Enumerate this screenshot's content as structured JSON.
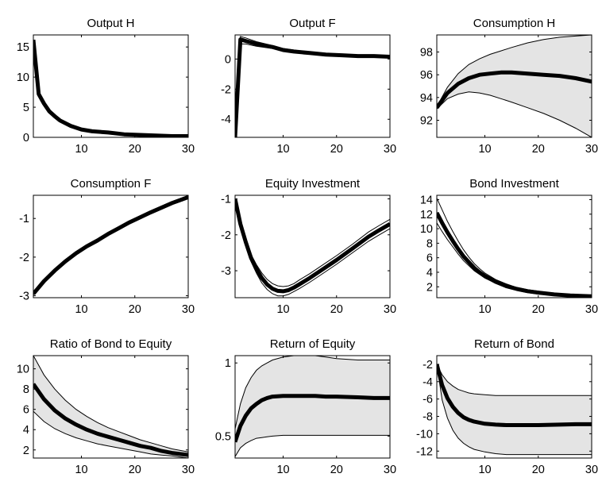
{
  "chart_data": [
    {
      "type": "line",
      "title": "Output H",
      "xlim": [
        1,
        30
      ],
      "ylim": [
        0,
        17
      ],
      "xticks": [
        10,
        20,
        30
      ],
      "yticks": [
        0,
        5,
        10,
        15
      ],
      "x": [
        1,
        2,
        3,
        4,
        5,
        6,
        8,
        10,
        12,
        15,
        18,
        21,
        24,
        27,
        30
      ],
      "mean": [
        16.2,
        7.2,
        5.6,
        4.3,
        3.5,
        2.8,
        1.9,
        1.3,
        1.0,
        0.8,
        0.5,
        0.4,
        0.3,
        0.2,
        0.2
      ],
      "lower": null,
      "upper": null,
      "band": false
    },
    {
      "type": "line",
      "title": "Output F",
      "xlim": [
        1,
        30
      ],
      "ylim": [
        -5.2,
        1.6
      ],
      "xticks": [
        10,
        20,
        30
      ],
      "yticks": [
        -4,
        -2,
        0
      ],
      "x": [
        1,
        2,
        3,
        5,
        8,
        10,
        12,
        15,
        18,
        21,
        24,
        27,
        30
      ],
      "mean": [
        -5.2,
        1.3,
        1.2,
        1.0,
        0.8,
        0.6,
        0.5,
        0.4,
        0.3,
        0.25,
        0.2,
        0.2,
        0.15
      ],
      "lower": [
        -5.2,
        1.0,
        1.0,
        0.85,
        0.7,
        0.55,
        0.45,
        0.35,
        0.25,
        0.2,
        0.15,
        0.15,
        0.1
      ],
      "upper": [
        -5.2,
        1.5,
        1.4,
        1.15,
        0.9,
        0.7,
        0.6,
        0.45,
        0.35,
        0.3,
        0.25,
        0.25,
        0.2
      ],
      "band": false
    },
    {
      "type": "line",
      "title": "Consumption H",
      "xlim": [
        1,
        30
      ],
      "ylim": [
        90.5,
        99.5
      ],
      "xticks": [
        10,
        20,
        30
      ],
      "yticks": [
        92,
        94,
        96,
        98
      ],
      "x": [
        1,
        3,
        5,
        7,
        9,
        11,
        13,
        15,
        18,
        21,
        24,
        27,
        30
      ],
      "mean": [
        93.1,
        94.4,
        95.2,
        95.7,
        96.0,
        96.1,
        96.2,
        96.2,
        96.1,
        96.0,
        95.9,
        95.7,
        95.4
      ],
      "lower": [
        93.0,
        93.9,
        94.3,
        94.5,
        94.4,
        94.2,
        93.9,
        93.6,
        93.1,
        92.6,
        92.0,
        91.3,
        90.5
      ],
      "upper": [
        93.2,
        94.9,
        96.1,
        96.9,
        97.4,
        97.8,
        98.1,
        98.4,
        98.8,
        99.1,
        99.3,
        99.4,
        99.5
      ],
      "band": true
    },
    {
      "type": "line",
      "title": "Consumption F",
      "xlim": [
        1,
        30
      ],
      "ylim": [
        -3.05,
        -0.4
      ],
      "xticks": [
        10,
        20,
        30
      ],
      "yticks": [
        -3,
        -2,
        -1
      ],
      "x": [
        1,
        3,
        5,
        7,
        9,
        11,
        13,
        15,
        17,
        19,
        21,
        23,
        25,
        27,
        30
      ],
      "mean": [
        -2.95,
        -2.62,
        -2.35,
        -2.11,
        -1.9,
        -1.72,
        -1.57,
        -1.4,
        -1.25,
        -1.1,
        -0.97,
        -0.84,
        -0.72,
        -0.6,
        -0.45
      ],
      "lower": [
        -2.98,
        -2.66,
        -2.39,
        -2.15,
        -1.94,
        -1.76,
        -1.61,
        -1.44,
        -1.29,
        -1.14,
        -1.01,
        -0.88,
        -0.76,
        -0.64,
        -0.49
      ],
      "upper": [
        -2.92,
        -2.58,
        -2.31,
        -2.07,
        -1.86,
        -1.68,
        -1.53,
        -1.36,
        -1.21,
        -1.06,
        -0.93,
        -0.8,
        -0.68,
        -0.56,
        -0.41
      ],
      "band": false
    },
    {
      "type": "line",
      "title": "Equity Investment",
      "xlim": [
        1,
        30
      ],
      "ylim": [
        -3.75,
        -0.9
      ],
      "xticks": [
        10,
        20,
        30
      ],
      "yticks": [
        -3,
        -2,
        -1
      ],
      "x": [
        1,
        2,
        3,
        4,
        5,
        6,
        7,
        8,
        9,
        10,
        11,
        12,
        13,
        15,
        17,
        20,
        23,
        26,
        28,
        30
      ],
      "mean": [
        -1.0,
        -1.7,
        -2.2,
        -2.65,
        -2.95,
        -3.2,
        -3.38,
        -3.5,
        -3.56,
        -3.57,
        -3.54,
        -3.47,
        -3.38,
        -3.2,
        -3.0,
        -2.7,
        -2.38,
        -2.05,
        -1.87,
        -1.7
      ],
      "lower": [
        -1.0,
        -1.75,
        -2.28,
        -2.75,
        -3.07,
        -3.34,
        -3.52,
        -3.64,
        -3.7,
        -3.7,
        -3.66,
        -3.58,
        -3.5,
        -3.32,
        -3.12,
        -2.82,
        -2.5,
        -2.18,
        -2.0,
        -1.83
      ],
      "upper": [
        -1.0,
        -1.65,
        -2.12,
        -2.55,
        -2.83,
        -3.06,
        -3.24,
        -3.36,
        -3.42,
        -3.44,
        -3.42,
        -3.36,
        -3.26,
        -3.08,
        -2.88,
        -2.58,
        -2.26,
        -1.92,
        -1.74,
        -1.57
      ],
      "band": false
    },
    {
      "type": "line",
      "title": "Bond Investment",
      "xlim": [
        1,
        30
      ],
      "ylim": [
        0.5,
        14.6
      ],
      "xticks": [
        10,
        20,
        30
      ],
      "yticks": [
        2,
        4,
        6,
        8,
        10,
        12,
        14
      ],
      "x": [
        1,
        2,
        3,
        4,
        5,
        6,
        7,
        8,
        9,
        10,
        12,
        14,
        16,
        18,
        20,
        23,
        26,
        30
      ],
      "mean": [
        12.2,
        10.8,
        9.5,
        8.3,
        7.2,
        6.2,
        5.4,
        4.6,
        4.0,
        3.5,
        2.7,
        2.1,
        1.7,
        1.4,
        1.2,
        0.95,
        0.8,
        0.7
      ],
      "lower": [
        10.8,
        9.6,
        8.5,
        7.5,
        6.5,
        5.6,
        4.9,
        4.2,
        3.7,
        3.2,
        2.5,
        1.9,
        1.5,
        1.2,
        1.0,
        0.8,
        0.65,
        0.5
      ],
      "upper": [
        14.2,
        12.6,
        11.0,
        9.6,
        8.3,
        7.1,
        6.1,
        5.2,
        4.5,
        3.9,
        3.0,
        2.4,
        1.9,
        1.6,
        1.4,
        1.1,
        0.95,
        0.85
      ],
      "band": false
    },
    {
      "type": "line",
      "title": "Ratio of Bond to Equity",
      "xlim": [
        1,
        30
      ],
      "ylim": [
        1.2,
        11.3
      ],
      "xticks": [
        10,
        20,
        30
      ],
      "yticks": [
        2,
        4,
        6,
        8,
        10
      ],
      "x": [
        1,
        3,
        5,
        7,
        9,
        11,
        13,
        15,
        17,
        19,
        21,
        23,
        25,
        27,
        30
      ],
      "mean": [
        8.5,
        7.0,
        5.9,
        5.1,
        4.5,
        4.0,
        3.6,
        3.3,
        3.0,
        2.7,
        2.4,
        2.2,
        1.9,
        1.7,
        1.5
      ],
      "lower": [
        5.8,
        4.8,
        4.1,
        3.6,
        3.2,
        2.9,
        2.6,
        2.4,
        2.2,
        2.0,
        1.8,
        1.6,
        1.5,
        1.4,
        1.2
      ],
      "upper": [
        11.3,
        9.4,
        8.0,
        6.9,
        6.0,
        5.3,
        4.7,
        4.2,
        3.8,
        3.4,
        3.0,
        2.7,
        2.4,
        2.1,
        1.8
      ],
      "band": true
    },
    {
      "type": "line",
      "title": "Return of Equity",
      "xlim": [
        1,
        30
      ],
      "ylim": [
        0.35,
        1.05
      ],
      "xticks": [
        10,
        20,
        30
      ],
      "yticks": [
        0.5,
        1
      ],
      "x": [
        1,
        2,
        3,
        4,
        5,
        6,
        7,
        8,
        10,
        12,
        14,
        16,
        18,
        20,
        24,
        27,
        30
      ],
      "mean": [
        0.46,
        0.57,
        0.64,
        0.69,
        0.72,
        0.745,
        0.76,
        0.77,
        0.775,
        0.775,
        0.775,
        0.775,
        0.77,
        0.77,
        0.765,
        0.76,
        0.76
      ],
      "lower": [
        0.36,
        0.42,
        0.45,
        0.47,
        0.485,
        0.49,
        0.495,
        0.5,
        0.505,
        0.505,
        0.505,
        0.505,
        0.505,
        0.505,
        0.505,
        0.505,
        0.505
      ],
      "upper": [
        0.55,
        0.72,
        0.83,
        0.9,
        0.95,
        0.98,
        1.0,
        1.02,
        1.04,
        1.05,
        1.05,
        1.05,
        1.04,
        1.03,
        1.02,
        1.02,
        1.02
      ],
      "band": true
    },
    {
      "type": "line",
      "title": "Return of Bond",
      "xlim": [
        1,
        30
      ],
      "ylim": [
        -12.8,
        -1.0
      ],
      "xticks": [
        10,
        20,
        30
      ],
      "yticks": [
        -12,
        -10,
        -8,
        -6,
        -4,
        -2
      ],
      "x": [
        1,
        2,
        3,
        4,
        5,
        6,
        7,
        8,
        10,
        12,
        14,
        16,
        18,
        20,
        24,
        27,
        30
      ],
      "mean": [
        -2.0,
        -4.4,
        -5.9,
        -6.9,
        -7.6,
        -8.1,
        -8.4,
        -8.6,
        -8.85,
        -8.95,
        -9.0,
        -9.0,
        -9.0,
        -9.0,
        -8.95,
        -8.9,
        -8.9
      ],
      "lower": [
        -2.0,
        -6.1,
        -8.2,
        -9.6,
        -10.5,
        -11.1,
        -11.5,
        -11.8,
        -12.1,
        -12.3,
        -12.4,
        -12.4,
        -12.4,
        -12.4,
        -12.4,
        -12.4,
        -12.4
      ],
      "upper": [
        -2.0,
        -3.2,
        -4.0,
        -4.5,
        -4.9,
        -5.1,
        -5.3,
        -5.4,
        -5.5,
        -5.6,
        -5.6,
        -5.6,
        -5.6,
        -5.6,
        -5.6,
        -5.6,
        -5.6
      ],
      "band": true
    }
  ]
}
